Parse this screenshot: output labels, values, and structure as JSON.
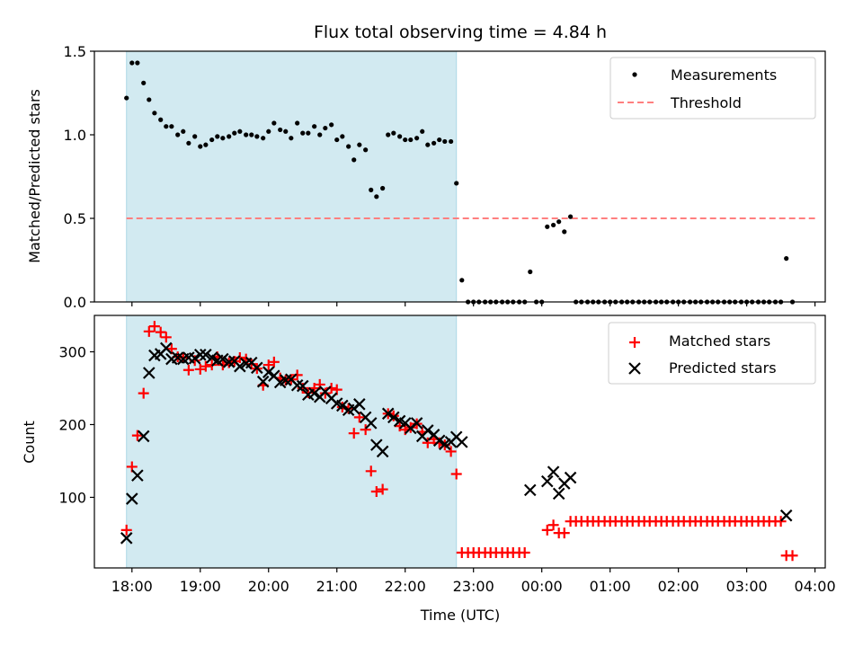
{
  "chart_data": {
    "type": "scatter",
    "title": "Flux total observing time = 4.84 h",
    "xlabel": "Time (UTC)",
    "x_ticks": [
      "18:00",
      "19:00",
      "20:00",
      "21:00",
      "22:00",
      "23:00",
      "00:00",
      "01:00",
      "02:00",
      "03:00",
      "04:00"
    ],
    "x_range_hours": [
      17.45,
      28.15
    ],
    "shaded_interval_hours": [
      17.92,
      22.75
    ],
    "colors": {
      "shade": "#add8e6",
      "threshold": "#ff7f7f",
      "matched": "#ff0000",
      "predicted": "#000000",
      "measurement": "#000000"
    },
    "top": {
      "ylabel": "Matched/Predicted stars",
      "ylim": [
        0,
        1.5
      ],
      "y_ticks": [
        "0.0",
        "0.5",
        "1.0",
        "1.5"
      ],
      "threshold": 0.5,
      "threshold_x_hours": [
        17.92,
        28.0
      ],
      "legend": [
        "Measurements",
        "Threshold"
      ],
      "ratio": [
        [
          17.92,
          1.22
        ],
        [
          18.0,
          1.43
        ],
        [
          18.08,
          1.43
        ],
        [
          18.17,
          1.31
        ],
        [
          18.25,
          1.21
        ],
        [
          18.33,
          1.13
        ],
        [
          18.42,
          1.09
        ],
        [
          18.5,
          1.05
        ],
        [
          18.58,
          1.05
        ],
        [
          18.67,
          1.0
        ],
        [
          18.75,
          1.02
        ],
        [
          18.83,
          0.95
        ],
        [
          18.92,
          0.99
        ],
        [
          19.0,
          0.93
        ],
        [
          19.08,
          0.94
        ],
        [
          19.17,
          0.97
        ],
        [
          19.25,
          0.99
        ],
        [
          19.33,
          0.98
        ],
        [
          19.42,
          0.99
        ],
        [
          19.5,
          1.01
        ],
        [
          19.58,
          1.02
        ],
        [
          19.67,
          1.0
        ],
        [
          19.75,
          1.0
        ],
        [
          19.83,
          0.99
        ],
        [
          19.92,
          0.98
        ],
        [
          20.0,
          1.02
        ],
        [
          20.08,
          1.07
        ],
        [
          20.17,
          1.03
        ],
        [
          20.25,
          1.02
        ],
        [
          20.33,
          0.98
        ],
        [
          20.42,
          1.07
        ],
        [
          20.5,
          1.01
        ],
        [
          20.58,
          1.01
        ],
        [
          20.67,
          1.05
        ],
        [
          20.75,
          1.0
        ],
        [
          20.83,
          1.04
        ],
        [
          20.92,
          1.06
        ],
        [
          21.0,
          0.97
        ],
        [
          21.08,
          0.99
        ],
        [
          21.17,
          0.93
        ],
        [
          21.25,
          0.85
        ],
        [
          21.33,
          0.94
        ],
        [
          21.42,
          0.91
        ],
        [
          21.5,
          0.67
        ],
        [
          21.58,
          0.63
        ],
        [
          21.67,
          0.68
        ],
        [
          21.75,
          1.0
        ],
        [
          21.83,
          1.01
        ],
        [
          21.92,
          0.99
        ],
        [
          22.0,
          0.97
        ],
        [
          22.08,
          0.97
        ],
        [
          22.17,
          0.98
        ],
        [
          22.25,
          1.02
        ],
        [
          22.33,
          0.94
        ],
        [
          22.42,
          0.95
        ],
        [
          22.5,
          0.97
        ],
        [
          22.58,
          0.96
        ],
        [
          22.67,
          0.96
        ],
        [
          22.75,
          0.71
        ],
        [
          22.83,
          0.13
        ],
        [
          22.92,
          0
        ],
        [
          23.0,
          0
        ],
        [
          23.08,
          0
        ],
        [
          23.17,
          0
        ],
        [
          23.25,
          0
        ],
        [
          23.33,
          0
        ],
        [
          23.42,
          0
        ],
        [
          23.5,
          0
        ],
        [
          23.58,
          0
        ],
        [
          23.67,
          0
        ],
        [
          23.75,
          0
        ],
        [
          23.83,
          0.18
        ],
        [
          23.92,
          0
        ],
        [
          24.0,
          0
        ],
        [
          24.08,
          0.45
        ],
        [
          24.17,
          0.46
        ],
        [
          24.25,
          0.48
        ],
        [
          24.33,
          0.42
        ],
        [
          24.42,
          0.51
        ],
        [
          24.5,
          0
        ],
        [
          24.58,
          0
        ],
        [
          24.67,
          0
        ],
        [
          24.75,
          0
        ],
        [
          24.83,
          0
        ],
        [
          24.92,
          0
        ],
        [
          25.0,
          0
        ],
        [
          25.08,
          0
        ],
        [
          25.17,
          0
        ],
        [
          25.25,
          0
        ],
        [
          25.33,
          0
        ],
        [
          25.42,
          0
        ],
        [
          25.5,
          0
        ],
        [
          25.58,
          0
        ],
        [
          25.67,
          0
        ],
        [
          25.75,
          0
        ],
        [
          25.83,
          0
        ],
        [
          25.92,
          0
        ],
        [
          26.0,
          0
        ],
        [
          26.08,
          0
        ],
        [
          26.17,
          0
        ],
        [
          26.25,
          0
        ],
        [
          26.33,
          0
        ],
        [
          26.42,
          0
        ],
        [
          26.5,
          0
        ],
        [
          26.58,
          0
        ],
        [
          26.67,
          0
        ],
        [
          26.75,
          0
        ],
        [
          26.83,
          0
        ],
        [
          26.92,
          0
        ],
        [
          27.0,
          0
        ],
        [
          27.08,
          0
        ],
        [
          27.17,
          0
        ],
        [
          27.25,
          0
        ],
        [
          27.33,
          0
        ],
        [
          27.42,
          0
        ],
        [
          27.5,
          0
        ],
        [
          27.58,
          0.26
        ],
        [
          27.67,
          0
        ]
      ]
    },
    "bottom": {
      "ylabel": "Count",
      "ylim": [
        3,
        350
      ],
      "y_ticks": [
        "100",
        "200",
        "300"
      ],
      "legend": [
        "Matched stars",
        "Predicted stars"
      ],
      "matched": [
        [
          17.92,
          55
        ],
        [
          18.0,
          142
        ],
        [
          18.08,
          185
        ],
        [
          18.17,
          243
        ],
        [
          18.25,
          328
        ],
        [
          18.33,
          335
        ],
        [
          18.42,
          327
        ],
        [
          18.5,
          320
        ],
        [
          18.58,
          304
        ],
        [
          18.67,
          293
        ],
        [
          18.75,
          292
        ],
        [
          18.83,
          275
        ],
        [
          18.92,
          288
        ],
        [
          19.0,
          276
        ],
        [
          19.08,
          280
        ],
        [
          19.17,
          282
        ],
        [
          19.25,
          293
        ],
        [
          19.33,
          282
        ],
        [
          19.42,
          285
        ],
        [
          19.5,
          287
        ],
        [
          19.58,
          292
        ],
        [
          19.67,
          290
        ],
        [
          19.75,
          283
        ],
        [
          19.83,
          277
        ],
        [
          19.92,
          254
        ],
        [
          20.0,
          282
        ],
        [
          20.08,
          286
        ],
        [
          20.17,
          264
        ],
        [
          20.25,
          261
        ],
        [
          20.33,
          262
        ],
        [
          20.42,
          268
        ],
        [
          20.5,
          250
        ],
        [
          20.58,
          244
        ],
        [
          20.67,
          250
        ],
        [
          20.75,
          255
        ],
        [
          20.83,
          243
        ],
        [
          20.92,
          250
        ],
        [
          21.0,
          248
        ],
        [
          21.08,
          224
        ],
        [
          21.17,
          222
        ],
        [
          21.25,
          188
        ],
        [
          21.33,
          210
        ],
        [
          21.42,
          193
        ],
        [
          21.5,
          136
        ],
        [
          21.58,
          108
        ],
        [
          21.67,
          111
        ],
        [
          21.75,
          215
        ],
        [
          21.83,
          212
        ],
        [
          21.92,
          198
        ],
        [
          22.0,
          193
        ],
        [
          22.08,
          196
        ],
        [
          22.17,
          201
        ],
        [
          22.25,
          190
        ],
        [
          22.33,
          175
        ],
        [
          22.42,
          180
        ],
        [
          22.5,
          175
        ],
        [
          22.58,
          172
        ],
        [
          22.67,
          163
        ],
        [
          22.75,
          132
        ],
        [
          22.83,
          24
        ],
        [
          22.92,
          24
        ],
        [
          23.0,
          24
        ],
        [
          23.08,
          24
        ],
        [
          23.17,
          24
        ],
        [
          23.25,
          24
        ],
        [
          23.33,
          24
        ],
        [
          23.42,
          24
        ],
        [
          23.5,
          24
        ],
        [
          23.58,
          24
        ],
        [
          23.67,
          24
        ],
        [
          23.75,
          24
        ],
        [
          24.08,
          55
        ],
        [
          24.17,
          62
        ],
        [
          24.25,
          51
        ],
        [
          24.33,
          51
        ],
        [
          24.42,
          67
        ],
        [
          24.5,
          67
        ],
        [
          24.58,
          67
        ],
        [
          24.67,
          67
        ],
        [
          24.75,
          67
        ],
        [
          24.83,
          67
        ],
        [
          24.92,
          67
        ],
        [
          25.0,
          67
        ],
        [
          25.08,
          67
        ],
        [
          25.17,
          67
        ],
        [
          25.25,
          67
        ],
        [
          25.33,
          67
        ],
        [
          25.42,
          67
        ],
        [
          25.5,
          67
        ],
        [
          25.58,
          67
        ],
        [
          25.67,
          67
        ],
        [
          25.75,
          67
        ],
        [
          25.83,
          67
        ],
        [
          25.92,
          67
        ],
        [
          26.0,
          67
        ],
        [
          26.08,
          67
        ],
        [
          26.17,
          67
        ],
        [
          26.25,
          67
        ],
        [
          26.33,
          67
        ],
        [
          26.42,
          67
        ],
        [
          26.5,
          67
        ],
        [
          26.58,
          67
        ],
        [
          26.67,
          67
        ],
        [
          26.75,
          67
        ],
        [
          26.83,
          67
        ],
        [
          26.92,
          67
        ],
        [
          27.0,
          67
        ],
        [
          27.08,
          67
        ],
        [
          27.17,
          67
        ],
        [
          27.25,
          67
        ],
        [
          27.33,
          67
        ],
        [
          27.42,
          67
        ],
        [
          27.5,
          67
        ],
        [
          27.58,
          20
        ],
        [
          27.67,
          20
        ]
      ],
      "predicted": [
        [
          17.92,
          44
        ],
        [
          18.0,
          98
        ],
        [
          18.08,
          130
        ],
        [
          18.17,
          184
        ],
        [
          18.25,
          271
        ],
        [
          18.33,
          295
        ],
        [
          18.42,
          297
        ],
        [
          18.5,
          305
        ],
        [
          18.58,
          290
        ],
        [
          18.67,
          292
        ],
        [
          18.75,
          290
        ],
        [
          18.83,
          292
        ],
        [
          18.92,
          291
        ],
        [
          19.0,
          296
        ],
        [
          19.08,
          296
        ],
        [
          19.17,
          292
        ],
        [
          19.25,
          288
        ],
        [
          19.33,
          290
        ],
        [
          19.42,
          286
        ],
        [
          19.5,
          287
        ],
        [
          19.58,
          280
        ],
        [
          19.67,
          284
        ],
        [
          19.75,
          285
        ],
        [
          19.83,
          278
        ],
        [
          19.92,
          259
        ],
        [
          20.0,
          272
        ],
        [
          20.08,
          267
        ],
        [
          20.17,
          258
        ],
        [
          20.25,
          261
        ],
        [
          20.33,
          262
        ],
        [
          20.42,
          254
        ],
        [
          20.5,
          253
        ],
        [
          20.58,
          241
        ],
        [
          20.67,
          243
        ],
        [
          20.75,
          238
        ],
        [
          20.83,
          245
        ],
        [
          20.92,
          236
        ],
        [
          21.0,
          229
        ],
        [
          21.08,
          226
        ],
        [
          21.17,
          220
        ],
        [
          21.25,
          222
        ],
        [
          21.33,
          228
        ],
        [
          21.42,
          210
        ],
        [
          21.5,
          202
        ],
        [
          21.58,
          172
        ],
        [
          21.67,
          163
        ],
        [
          21.75,
          215
        ],
        [
          21.83,
          210
        ],
        [
          21.92,
          205
        ],
        [
          22.0,
          202
        ],
        [
          22.08,
          195
        ],
        [
          22.17,
          202
        ],
        [
          22.25,
          184
        ],
        [
          22.33,
          192
        ],
        [
          22.42,
          186
        ],
        [
          22.5,
          178
        ],
        [
          22.58,
          173
        ],
        [
          22.67,
          176
        ],
        [
          22.75,
          183
        ],
        [
          22.83,
          176
        ],
        [
          23.83,
          110
        ],
        [
          24.08,
          122
        ],
        [
          24.17,
          135
        ],
        [
          24.25,
          105
        ],
        [
          24.33,
          119
        ],
        [
          24.42,
          127
        ],
        [
          27.58,
          75
        ]
      ]
    }
  }
}
